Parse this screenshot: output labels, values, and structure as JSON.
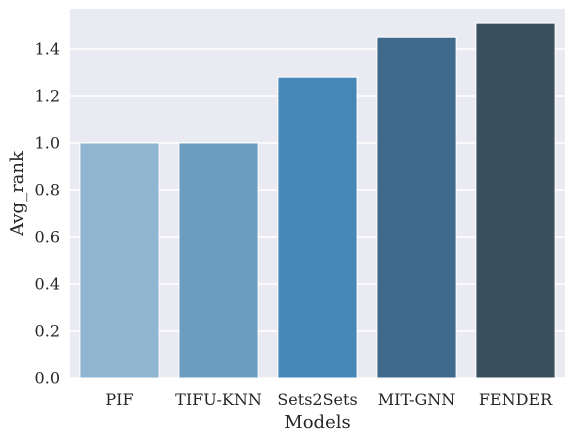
{
  "chart_data": {
    "type": "bar",
    "title": "",
    "xlabel": "Models",
    "ylabel": "Avg_rank",
    "categories": [
      "PIF",
      "TIFU-KNN",
      "Sets2Sets",
      "MIT-GNN",
      "FENDER"
    ],
    "values": [
      1.0,
      1.0,
      1.28,
      1.45,
      1.51
    ],
    "ylim": [
      0,
      1.57
    ],
    "yticks": [
      0.0,
      0.2,
      0.4,
      0.6,
      0.8,
      1.0,
      1.2,
      1.4
    ],
    "ytick_labels": [
      "0.0",
      "0.2",
      "0.4",
      "0.6",
      "0.8",
      "1.0",
      "1.2",
      "1.4"
    ],
    "grid": true,
    "colors": [
      "#90b5d0",
      "#6b9dc0",
      "#4787b8",
      "#3f6a8c",
      "#3b505f"
    ],
    "background": "#eaeaf2"
  }
}
